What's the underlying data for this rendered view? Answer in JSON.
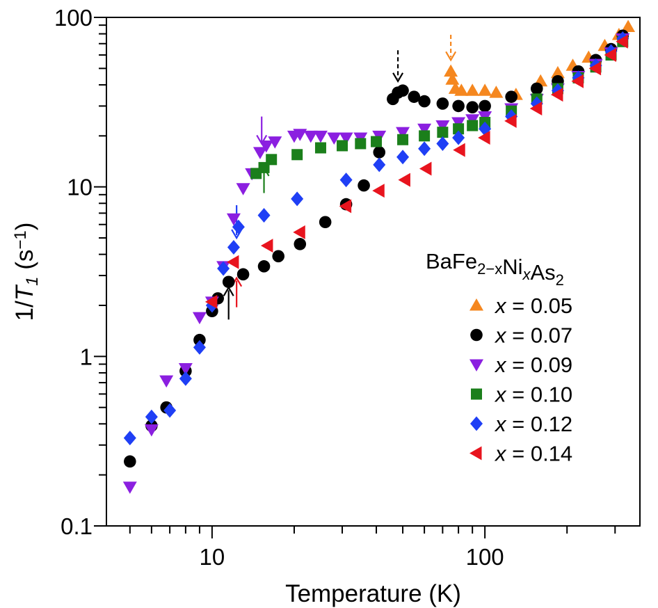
{
  "chart_data": {
    "type": "scatter",
    "xscale": "log",
    "yscale": "log",
    "xlim": [
      4.1,
      370
    ],
    "ylim": [
      0.1,
      100
    ],
    "xlabel": "Temperature (K)",
    "ylabel_parts": [
      "1/",
      "T",
      "1",
      " (s",
      "−1",
      ")"
    ],
    "x_ticks": [
      "10",
      "100"
    ],
    "y_ticks": [
      "0.1",
      "1",
      "10",
      "100"
    ],
    "legend_title_parts": [
      "BaFe",
      "2−x",
      "Ni",
      "x",
      "As",
      "2"
    ],
    "legend_position": "right",
    "series": [
      {
        "name": "x = 0.05",
        "label_var": "x",
        "label_rest": " = 0.05",
        "marker": "triangle-up",
        "color": "#f5871f",
        "x": [
          75,
          76,
          78,
          82,
          90,
          100,
          110,
          130,
          160,
          185,
          210,
          240,
          275,
          310,
          335
        ],
        "y": [
          48,
          43,
          38,
          37,
          37,
          37,
          36,
          35,
          42,
          47,
          52,
          58,
          68,
          79,
          88
        ]
      },
      {
        "name": "x = 0.07",
        "label_var": "x",
        "label_rest": " = 0.07",
        "marker": "circle",
        "color": "#000000",
        "x": [
          5,
          6,
          6.8,
          8,
          9,
          10,
          10.5,
          11.5,
          13,
          15.5,
          17.5,
          21,
          26,
          31,
          36,
          41,
          46,
          48,
          50,
          55,
          60,
          70,
          80,
          90,
          100,
          125,
          155,
          185,
          220,
          255,
          290,
          320
        ],
        "y": [
          0.24,
          0.39,
          0.5,
          0.82,
          1.25,
          1.85,
          2.2,
          2.75,
          3.05,
          3.4,
          3.9,
          4.6,
          6.2,
          7.9,
          10.2,
          16,
          33,
          36,
          37,
          34,
          32,
          31,
          30,
          29.5,
          30,
          34,
          38,
          42,
          48,
          56,
          65,
          78
        ]
      },
      {
        "name": "x = 0.09",
        "label_var": "x",
        "label_rest": " = 0.09",
        "marker": "triangle-down",
        "color": "#8b1fe0",
        "x": [
          5,
          6,
          6.8,
          8,
          9,
          10,
          11,
          12,
          13,
          14,
          15,
          15.8,
          17,
          20,
          21,
          23,
          25,
          28,
          31,
          35,
          41,
          50,
          60,
          70,
          80,
          90,
          100,
          125,
          155,
          185,
          220,
          255,
          290,
          320
        ],
        "y": [
          0.17,
          0.37,
          0.72,
          0.85,
          1.7,
          2.1,
          3.4,
          6.5,
          9.8,
          12,
          16,
          17.5,
          18.5,
          20,
          20.5,
          20,
          20,
          19.5,
          19.5,
          19.5,
          20,
          21,
          22,
          23,
          24,
          25,
          26,
          29,
          33,
          38,
          45,
          53,
          62,
          75
        ]
      },
      {
        "name": "x = 0.10",
        "label_var": "x",
        "label_rest": " = 0.10",
        "marker": "square",
        "color": "#1b7f1b",
        "x": [
          14.5,
          15.5,
          16.5,
          20.5,
          25,
          30,
          35,
          40,
          50,
          60,
          70,
          80,
          90,
          100,
          125,
          155,
          185,
          220,
          255,
          290,
          320
        ],
        "y": [
          12,
          13,
          14.5,
          15.5,
          17,
          17.5,
          18,
          18.5,
          19,
          20,
          21,
          22,
          23,
          24,
          28,
          33,
          38,
          44,
          51,
          60,
          72
        ]
      },
      {
        "name": "x = 0.12",
        "label_var": "x",
        "label_rest": " = 0.12",
        "marker": "diamond",
        "color": "#1f3ff5",
        "x": [
          5,
          6,
          7,
          8,
          9,
          10,
          11,
          12,
          12.5,
          15.5,
          20.5,
          31,
          41,
          50,
          60,
          70,
          80,
          100,
          125,
          155,
          185,
          220,
          255,
          290,
          320
        ],
        "y": [
          0.33,
          0.44,
          0.48,
          0.74,
          1.13,
          2,
          3.3,
          4.4,
          5.8,
          6.8,
          8.5,
          11,
          13.5,
          15,
          16.8,
          18,
          19.5,
          22,
          26,
          31,
          37,
          44,
          52,
          63,
          75
        ]
      },
      {
        "name": "x = 0.14",
        "label_var": "x",
        "label_rest": " = 0.14",
        "marker": "triangle-left",
        "color": "#e8141e",
        "x": [
          10,
          12,
          16,
          21,
          31,
          41,
          51,
          61,
          81,
          100,
          125,
          155,
          185,
          220,
          255,
          290,
          320
        ],
        "y": [
          2.1,
          3.6,
          4.5,
          5.4,
          7.7,
          9.5,
          11,
          12.8,
          16.5,
          19.5,
          24.5,
          29,
          35,
          42,
          50,
          60,
          72
        ]
      }
    ],
    "arrows": [
      {
        "x": 75,
        "y_from": 79,
        "y_to": 56,
        "color": "#f5871f",
        "dashed": true
      },
      {
        "x": 48,
        "y_from": 64,
        "y_to": 42,
        "color": "#000000",
        "dashed": true
      },
      {
        "x": 15.2,
        "y_from": 26,
        "y_to": 18,
        "color": "#8b1fe0",
        "dashed": false
      },
      {
        "x": 12.3,
        "y_from": 7.8,
        "y_to": 5.0,
        "color": "#1f3ff5",
        "dashed": false
      },
      {
        "x": 15.5,
        "y_from": 9.2,
        "y_to": 13,
        "color": "#1b7f1b",
        "dashed": false
      },
      {
        "x": 11.5,
        "y_from": 1.65,
        "y_to": 2.55,
        "color": "#000000",
        "dashed": false
      },
      {
        "x": 12.3,
        "y_from": 1.95,
        "y_to": 2.9,
        "color": "#e8141e",
        "dashed": false
      }
    ]
  }
}
